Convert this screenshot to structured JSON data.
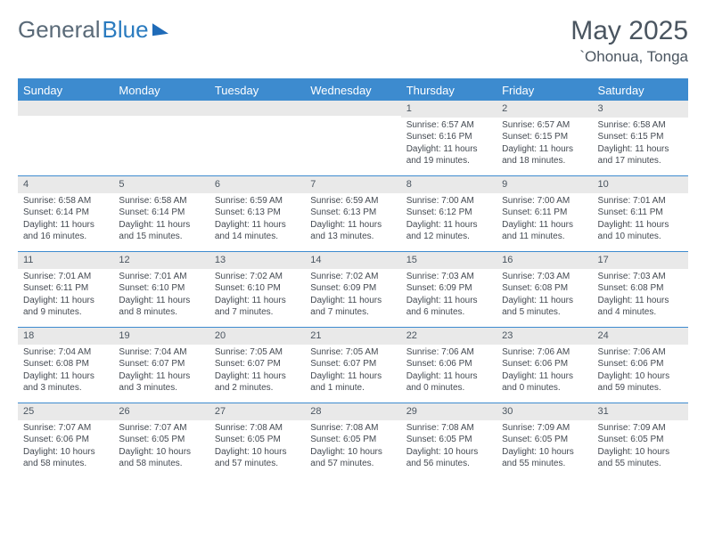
{
  "brand": {
    "part1": "General",
    "part2": "Blue"
  },
  "title": "May 2025",
  "location": "`Ohonua, Tonga",
  "colors": {
    "header_bg": "#3d8bcf",
    "header_text": "#ffffff",
    "daynum_bg": "#e9e9e9",
    "body_text": "#444a52",
    "title_text": "#4a5560",
    "rule": "#3d8bcf"
  },
  "day_labels": [
    "Sunday",
    "Monday",
    "Tuesday",
    "Wednesday",
    "Thursday",
    "Friday",
    "Saturday"
  ],
  "weeks": [
    [
      {
        "n": "",
        "sr": "",
        "ss": "",
        "dl": ""
      },
      {
        "n": "",
        "sr": "",
        "ss": "",
        "dl": ""
      },
      {
        "n": "",
        "sr": "",
        "ss": "",
        "dl": ""
      },
      {
        "n": "",
        "sr": "",
        "ss": "",
        "dl": ""
      },
      {
        "n": "1",
        "sr": "Sunrise: 6:57 AM",
        "ss": "Sunset: 6:16 PM",
        "dl": "Daylight: 11 hours and 19 minutes."
      },
      {
        "n": "2",
        "sr": "Sunrise: 6:57 AM",
        "ss": "Sunset: 6:15 PM",
        "dl": "Daylight: 11 hours and 18 minutes."
      },
      {
        "n": "3",
        "sr": "Sunrise: 6:58 AM",
        "ss": "Sunset: 6:15 PM",
        "dl": "Daylight: 11 hours and 17 minutes."
      }
    ],
    [
      {
        "n": "4",
        "sr": "Sunrise: 6:58 AM",
        "ss": "Sunset: 6:14 PM",
        "dl": "Daylight: 11 hours and 16 minutes."
      },
      {
        "n": "5",
        "sr": "Sunrise: 6:58 AM",
        "ss": "Sunset: 6:14 PM",
        "dl": "Daylight: 11 hours and 15 minutes."
      },
      {
        "n": "6",
        "sr": "Sunrise: 6:59 AM",
        "ss": "Sunset: 6:13 PM",
        "dl": "Daylight: 11 hours and 14 minutes."
      },
      {
        "n": "7",
        "sr": "Sunrise: 6:59 AM",
        "ss": "Sunset: 6:13 PM",
        "dl": "Daylight: 11 hours and 13 minutes."
      },
      {
        "n": "8",
        "sr": "Sunrise: 7:00 AM",
        "ss": "Sunset: 6:12 PM",
        "dl": "Daylight: 11 hours and 12 minutes."
      },
      {
        "n": "9",
        "sr": "Sunrise: 7:00 AM",
        "ss": "Sunset: 6:11 PM",
        "dl": "Daylight: 11 hours and 11 minutes."
      },
      {
        "n": "10",
        "sr": "Sunrise: 7:01 AM",
        "ss": "Sunset: 6:11 PM",
        "dl": "Daylight: 11 hours and 10 minutes."
      }
    ],
    [
      {
        "n": "11",
        "sr": "Sunrise: 7:01 AM",
        "ss": "Sunset: 6:11 PM",
        "dl": "Daylight: 11 hours and 9 minutes."
      },
      {
        "n": "12",
        "sr": "Sunrise: 7:01 AM",
        "ss": "Sunset: 6:10 PM",
        "dl": "Daylight: 11 hours and 8 minutes."
      },
      {
        "n": "13",
        "sr": "Sunrise: 7:02 AM",
        "ss": "Sunset: 6:10 PM",
        "dl": "Daylight: 11 hours and 7 minutes."
      },
      {
        "n": "14",
        "sr": "Sunrise: 7:02 AM",
        "ss": "Sunset: 6:09 PM",
        "dl": "Daylight: 11 hours and 7 minutes."
      },
      {
        "n": "15",
        "sr": "Sunrise: 7:03 AM",
        "ss": "Sunset: 6:09 PM",
        "dl": "Daylight: 11 hours and 6 minutes."
      },
      {
        "n": "16",
        "sr": "Sunrise: 7:03 AM",
        "ss": "Sunset: 6:08 PM",
        "dl": "Daylight: 11 hours and 5 minutes."
      },
      {
        "n": "17",
        "sr": "Sunrise: 7:03 AM",
        "ss": "Sunset: 6:08 PM",
        "dl": "Daylight: 11 hours and 4 minutes."
      }
    ],
    [
      {
        "n": "18",
        "sr": "Sunrise: 7:04 AM",
        "ss": "Sunset: 6:08 PM",
        "dl": "Daylight: 11 hours and 3 minutes."
      },
      {
        "n": "19",
        "sr": "Sunrise: 7:04 AM",
        "ss": "Sunset: 6:07 PM",
        "dl": "Daylight: 11 hours and 3 minutes."
      },
      {
        "n": "20",
        "sr": "Sunrise: 7:05 AM",
        "ss": "Sunset: 6:07 PM",
        "dl": "Daylight: 11 hours and 2 minutes."
      },
      {
        "n": "21",
        "sr": "Sunrise: 7:05 AM",
        "ss": "Sunset: 6:07 PM",
        "dl": "Daylight: 11 hours and 1 minute."
      },
      {
        "n": "22",
        "sr": "Sunrise: 7:06 AM",
        "ss": "Sunset: 6:06 PM",
        "dl": "Daylight: 11 hours and 0 minutes."
      },
      {
        "n": "23",
        "sr": "Sunrise: 7:06 AM",
        "ss": "Sunset: 6:06 PM",
        "dl": "Daylight: 11 hours and 0 minutes."
      },
      {
        "n": "24",
        "sr": "Sunrise: 7:06 AM",
        "ss": "Sunset: 6:06 PM",
        "dl": "Daylight: 10 hours and 59 minutes."
      }
    ],
    [
      {
        "n": "25",
        "sr": "Sunrise: 7:07 AM",
        "ss": "Sunset: 6:06 PM",
        "dl": "Daylight: 10 hours and 58 minutes."
      },
      {
        "n": "26",
        "sr": "Sunrise: 7:07 AM",
        "ss": "Sunset: 6:05 PM",
        "dl": "Daylight: 10 hours and 58 minutes."
      },
      {
        "n": "27",
        "sr": "Sunrise: 7:08 AM",
        "ss": "Sunset: 6:05 PM",
        "dl": "Daylight: 10 hours and 57 minutes."
      },
      {
        "n": "28",
        "sr": "Sunrise: 7:08 AM",
        "ss": "Sunset: 6:05 PM",
        "dl": "Daylight: 10 hours and 57 minutes."
      },
      {
        "n": "29",
        "sr": "Sunrise: 7:08 AM",
        "ss": "Sunset: 6:05 PM",
        "dl": "Daylight: 10 hours and 56 minutes."
      },
      {
        "n": "30",
        "sr": "Sunrise: 7:09 AM",
        "ss": "Sunset: 6:05 PM",
        "dl": "Daylight: 10 hours and 55 minutes."
      },
      {
        "n": "31",
        "sr": "Sunrise: 7:09 AM",
        "ss": "Sunset: 6:05 PM",
        "dl": "Daylight: 10 hours and 55 minutes."
      }
    ]
  ]
}
